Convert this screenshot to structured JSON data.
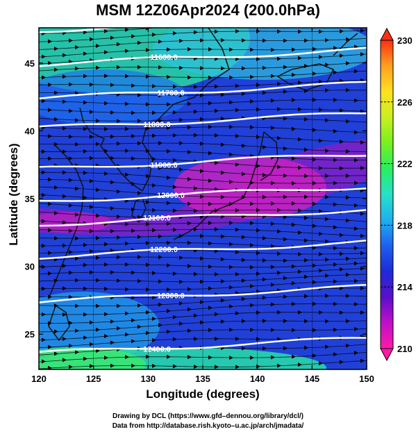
{
  "title": "MSM 12Z06Apr2024 (200.0hPa)",
  "x_axis": {
    "label": "Longitude (degrees)",
    "range": [
      120,
      150
    ],
    "ticks": [
      "120",
      "125",
      "130",
      "135",
      "140",
      "145",
      "150"
    ]
  },
  "y_axis": {
    "label": "Latitude  (degrees)",
    "range": [
      22.4,
      47.6
    ],
    "ticks": [
      "25",
      "30",
      "35",
      "40",
      "45"
    ]
  },
  "colorbar": {
    "range": [
      210,
      230
    ],
    "labels": [
      "230",
      "226",
      "222",
      "218",
      "214",
      "210"
    ],
    "stops": [
      "#ff1aa6",
      "#c010c8",
      "#5a10c8",
      "#1e2ad8",
      "#1e60ee",
      "#1eb0f0",
      "#28e0c8",
      "#28ee60",
      "#78f020",
      "#c8f020",
      "#ffe020",
      "#ffa020",
      "#ff3010"
    ]
  },
  "contours": {
    "labels": [
      "11500.0",
      "11600.0",
      "11700.0",
      "11800.0",
      "11900.0",
      "12000.0",
      "12100.0",
      "12200.0",
      "12300.0",
      "12400.0"
    ],
    "latitudes": [
      47.4,
      44.9,
      42.4,
      40.2,
      37.2,
      34.8,
      33.1,
      30.7,
      27.4,
      23.6
    ]
  },
  "map_features": {
    "coastline_color": "#111111",
    "contour_color": "#ffffff",
    "streamline_color": "#000000"
  },
  "credits": {
    "line1": "Drawing by DCL (https://www.gfd–dennou.org/library/dcl/)",
    "line2": "Data from http://database.rish.kyoto–u.ac.jp/arch/jmadata/"
  }
}
